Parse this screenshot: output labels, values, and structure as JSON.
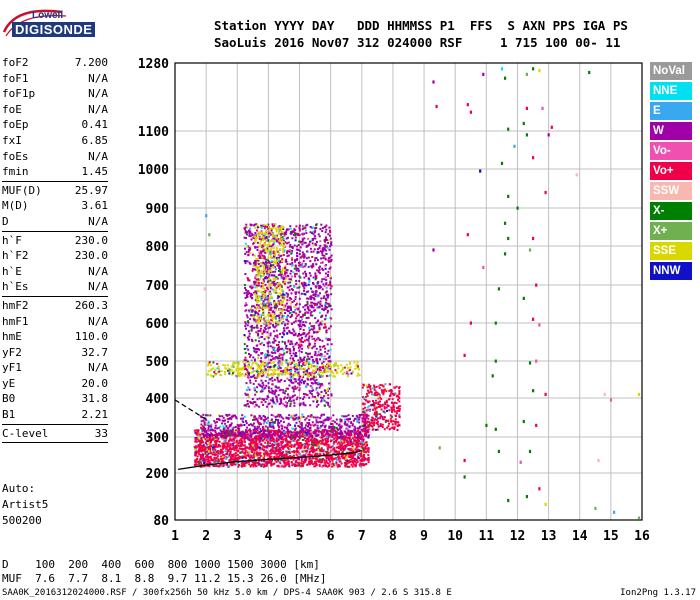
{
  "logo": {
    "line1": "Lowell",
    "line2": "DIGISONDE"
  },
  "header": {
    "line1": "Station YYYY DAY   DDD HHMMSS P1  FFS  S AXN PPS IGA PS",
    "line2": "SaoLuis 2016 Nov07 312 024000 RSF     1 715 100 00- 11"
  },
  "params_group1": [
    {
      "k": "foF2",
      "v": "7.200"
    },
    {
      "k": "foF1",
      "v": "N/A"
    },
    {
      "k": "foF1p",
      "v": "N/A"
    },
    {
      "k": "foE",
      "v": "N/A"
    },
    {
      "k": "foEp",
      "v": "0.41"
    },
    {
      "k": "fxI",
      "v": "6.85"
    },
    {
      "k": "foEs",
      "v": "N/A"
    },
    {
      "k": "fmin",
      "v": "1.45"
    }
  ],
  "params_group2": [
    {
      "k": "MUF(D)",
      "v": "25.97"
    },
    {
      "k": "M(D)",
      "v": "3.61"
    },
    {
      "k": "D",
      "v": "N/A"
    }
  ],
  "params_group3": [
    {
      "k": "h`F",
      "v": "230.0"
    },
    {
      "k": "h`F2",
      "v": "230.0"
    },
    {
      "k": "h`E",
      "v": "N/A"
    },
    {
      "k": "h`Es",
      "v": "N/A"
    }
  ],
  "params_group4": [
    {
      "k": "hmF2",
      "v": "260.3"
    },
    {
      "k": "hmF1",
      "v": "N/A"
    },
    {
      "k": "hmE",
      "v": "110.0"
    },
    {
      "k": "yF2",
      "v": "32.7"
    },
    {
      "k": "yF1",
      "v": "N/A"
    },
    {
      "k": "yE",
      "v": "20.0"
    },
    {
      "k": "B0",
      "v": "31.8"
    },
    {
      "k": "B1",
      "v": "2.21"
    }
  ],
  "params_group5": [
    {
      "k": "C-level",
      "v": "33"
    }
  ],
  "auto": {
    "line1": "Auto:",
    "line2": "Artist5",
    "line3": "500200"
  },
  "legend": [
    {
      "label": "NoVal",
      "color": "#9a9a9a"
    },
    {
      "label": "NNE",
      "color": "#00e0f0"
    },
    {
      "label": "E",
      "color": "#3aa8f0"
    },
    {
      "label": "W",
      "color": "#a000a8"
    },
    {
      "label": "Vo-",
      "color": "#f050b0"
    },
    {
      "label": "Vo+",
      "color": "#f00048"
    },
    {
      "label": "SSW",
      "color": "#f8b8b0"
    },
    {
      "label": "X-",
      "color": "#008000"
    },
    {
      "label": "X+",
      "color": "#70b050"
    },
    {
      "label": "SSE",
      "color": "#d8d800"
    },
    {
      "label": "NNW",
      "color": "#1010c8"
    }
  ],
  "muf_table": {
    "line1": "D    100  200  400  600  800 1000 1500 3000 [km]",
    "line2": "MUF  7.6  7.7  8.1  8.8  9.7 11.2 15.3 26.0 [MHz]"
  },
  "footer": "SAA0K_2016312024000.RSF / 300fx256h 50 kHz 5.0 km / DPS-4 SAA0K 903 / 2.6 S 315.8 E",
  "version": "Ion2Png 1.3.17",
  "chart_data": {
    "type": "scatter",
    "xlim": [
      1,
      16
    ],
    "ylim": [
      80,
      1280
    ],
    "x_ticks": [
      1,
      2,
      3,
      4,
      5,
      6,
      7,
      8,
      9,
      10,
      11,
      12,
      13,
      14,
      15,
      16
    ],
    "y_ticks": [
      80,
      200,
      300,
      400,
      500,
      600,
      700,
      800,
      900,
      1000,
      1100,
      1280
    ],
    "grid": true,
    "y_axis_scale": "compressed-height",
    "trace_points": [
      {
        "x": 1.1,
        "y": 210
      },
      {
        "x": 2.0,
        "y": 222
      },
      {
        "x": 3.0,
        "y": 232
      },
      {
        "x": 4.0,
        "y": 238
      },
      {
        "x": 5.0,
        "y": 243
      },
      {
        "x": 6.0,
        "y": 250
      },
      {
        "x": 6.7,
        "y": 256
      },
      {
        "x": 7.0,
        "y": 262
      }
    ],
    "dashed_points": [
      {
        "x": 1.0,
        "y": 395
      },
      {
        "x": 1.5,
        "y": 370
      },
      {
        "x": 2.0,
        "y": 345
      }
    ],
    "echo_regions": [
      {
        "x0": 1.6,
        "x1": 7.2,
        "y0": 220,
        "y1": 320,
        "color": "Vo+",
        "density": 1
      },
      {
        "x0": 1.8,
        "x1": 7.2,
        "y0": 300,
        "y1": 360,
        "color": "W",
        "density": 0.5
      },
      {
        "x0": 3.2,
        "x1": 6.0,
        "y0": 380,
        "y1": 860,
        "color": "W",
        "density": 0.35
      },
      {
        "x0": 3.5,
        "x1": 4.5,
        "y0": 600,
        "y1": 860,
        "color": "SSE",
        "density": 0.35
      },
      {
        "x0": 2.0,
        "x1": 6.9,
        "y0": 460,
        "y1": 500,
        "color": "SSE",
        "density": 0.4
      },
      {
        "x0": 7.0,
        "x1": 8.2,
        "y0": 320,
        "y1": 440,
        "color": "Vo+",
        "density": 0.5
      }
    ],
    "scatter_points": [
      {
        "x": 9.3,
        "y": 1230,
        "c": "W"
      },
      {
        "x": 9.4,
        "y": 1165,
        "c": "Vo+"
      },
      {
        "x": 10.4,
        "y": 1170,
        "c": "Vo+"
      },
      {
        "x": 10.5,
        "y": 1150,
        "c": "Vo+"
      },
      {
        "x": 10.9,
        "y": 1250,
        "c": "W"
      },
      {
        "x": 11.5,
        "y": 1265,
        "c": "NNE"
      },
      {
        "x": 11.6,
        "y": 1240,
        "c": "X-"
      },
      {
        "x": 12.3,
        "y": 1250,
        "c": "X+"
      },
      {
        "x": 12.5,
        "y": 1265,
        "c": "X-"
      },
      {
        "x": 12.7,
        "y": 1260,
        "c": "SSE"
      },
      {
        "x": 14.3,
        "y": 1255,
        "c": "X-"
      },
      {
        "x": 12.3,
        "y": 1160,
        "c": "Vo+"
      },
      {
        "x": 12.8,
        "y": 1160,
        "c": "Vo-"
      },
      {
        "x": 11.7,
        "y": 1105,
        "c": "X-"
      },
      {
        "x": 12.2,
        "y": 1120,
        "c": "X-"
      },
      {
        "x": 13.0,
        "y": 1090,
        "c": "W"
      },
      {
        "x": 11.9,
        "y": 1060,
        "c": "E"
      },
      {
        "x": 12.5,
        "y": 1030,
        "c": "Vo+"
      },
      {
        "x": 11.5,
        "y": 1015,
        "c": "X-"
      },
      {
        "x": 10.8,
        "y": 995,
        "c": "NNW"
      },
      {
        "x": 13.9,
        "y": 985,
        "c": "SSW"
      },
      {
        "x": 11.7,
        "y": 930,
        "c": "X-"
      },
      {
        "x": 12.9,
        "y": 940,
        "c": "Vo+"
      },
      {
        "x": 11.6,
        "y": 860,
        "c": "X-"
      },
      {
        "x": 11.7,
        "y": 820,
        "c": "X-"
      },
      {
        "x": 11.6,
        "y": 780,
        "c": "X-"
      },
      {
        "x": 12.4,
        "y": 790,
        "c": "X+"
      },
      {
        "x": 10.4,
        "y": 830,
        "c": "Vo+"
      },
      {
        "x": 9.3,
        "y": 790,
        "c": "W"
      },
      {
        "x": 12.5,
        "y": 820,
        "c": "Vo+"
      },
      {
        "x": 10.9,
        "y": 745,
        "c": "Vo-"
      },
      {
        "x": 11.4,
        "y": 690,
        "c": "X-"
      },
      {
        "x": 12.6,
        "y": 700,
        "c": "Vo+"
      },
      {
        "x": 12.2,
        "y": 665,
        "c": "X-"
      },
      {
        "x": 12.5,
        "y": 610,
        "c": "Vo+"
      },
      {
        "x": 11.3,
        "y": 600,
        "c": "X-"
      },
      {
        "x": 10.5,
        "y": 600,
        "c": "Vo+"
      },
      {
        "x": 12.7,
        "y": 595,
        "c": "Vo-"
      },
      {
        "x": 10.3,
        "y": 515,
        "c": "Vo+"
      },
      {
        "x": 11.3,
        "y": 500,
        "c": "X-"
      },
      {
        "x": 12.4,
        "y": 495,
        "c": "X-"
      },
      {
        "x": 12.6,
        "y": 500,
        "c": "Vo-"
      },
      {
        "x": 12.5,
        "y": 420,
        "c": "X-"
      },
      {
        "x": 11.2,
        "y": 460,
        "c": "X-"
      },
      {
        "x": 12.9,
        "y": 410,
        "c": "Vo+"
      },
      {
        "x": 12.2,
        "y": 340,
        "c": "X-"
      },
      {
        "x": 11.0,
        "y": 330,
        "c": "X-"
      },
      {
        "x": 11.3,
        "y": 320,
        "c": "X-"
      },
      {
        "x": 12.6,
        "y": 330,
        "c": "Vo+"
      },
      {
        "x": 12.4,
        "y": 260,
        "c": "X-"
      },
      {
        "x": 11.4,
        "y": 260,
        "c": "X-"
      },
      {
        "x": 10.3,
        "y": 235,
        "c": "Vo+"
      },
      {
        "x": 12.1,
        "y": 230,
        "c": "Vo-"
      },
      {
        "x": 10.3,
        "y": 190,
        "c": "X-"
      },
      {
        "x": 12.3,
        "y": 140,
        "c": "X-"
      },
      {
        "x": 12.7,
        "y": 160,
        "c": "Vo+"
      },
      {
        "x": 11.7,
        "y": 130,
        "c": "X-"
      },
      {
        "x": 12.9,
        "y": 120,
        "c": "SSE"
      },
      {
        "x": 14.5,
        "y": 110,
        "c": "X+"
      },
      {
        "x": 15.1,
        "y": 100,
        "c": "E"
      },
      {
        "x": 15.9,
        "y": 85,
        "c": "X+"
      },
      {
        "x": 14.6,
        "y": 235,
        "c": "SSW"
      },
      {
        "x": 15.0,
        "y": 395,
        "c": "Vo-"
      },
      {
        "x": 14.8,
        "y": 410,
        "c": "SSW"
      },
      {
        "x": 15.9,
        "y": 410,
        "c": "SSE"
      },
      {
        "x": 9.5,
        "y": 270,
        "c": "X+"
      },
      {
        "x": 12.3,
        "y": 1090,
        "c": "X-"
      },
      {
        "x": 13.1,
        "y": 1110,
        "c": "Vo+"
      },
      {
        "x": 12.0,
        "y": 900,
        "c": "X-"
      },
      {
        "x": 2.0,
        "y": 880,
        "c": "E"
      },
      {
        "x": 2.1,
        "y": 830,
        "c": "X+"
      },
      {
        "x": 1.95,
        "y": 690,
        "c": "SSW"
      }
    ]
  }
}
